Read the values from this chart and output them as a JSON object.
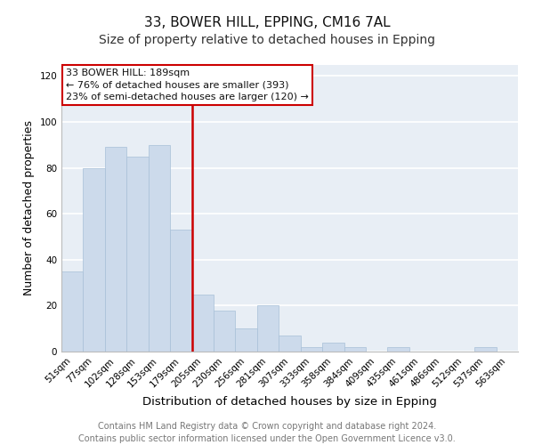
{
  "title1": "33, BOWER HILL, EPPING, CM16 7AL",
  "title2": "Size of property relative to detached houses in Epping",
  "xlabel": "Distribution of detached houses by size in Epping",
  "ylabel": "Number of detached properties",
  "categories": [
    "51sqm",
    "77sqm",
    "102sqm",
    "128sqm",
    "153sqm",
    "179sqm",
    "205sqm",
    "230sqm",
    "256sqm",
    "281sqm",
    "307sqm",
    "333sqm",
    "358sqm",
    "384sqm",
    "409sqm",
    "435sqm",
    "461sqm",
    "486sqm",
    "512sqm",
    "537sqm",
    "563sqm"
  ],
  "values": [
    35,
    80,
    89,
    85,
    90,
    53,
    25,
    18,
    10,
    20,
    7,
    2,
    4,
    2,
    0,
    2,
    0,
    0,
    0,
    2,
    0
  ],
  "bar_color": "#ccdaeb",
  "bar_edge_color": "#a8c0d8",
  "vline_x_index": 5.5,
  "vline_color": "#cc0000",
  "annotation_line1": "33 BOWER HILL: 189sqm",
  "annotation_line2": "← 76% of detached houses are smaller (393)",
  "annotation_line3": "23% of semi-detached houses are larger (120) →",
  "annotation_box_color": "#ffffff",
  "annotation_box_edge": "#cc0000",
  "ylim": [
    0,
    125
  ],
  "yticks": [
    0,
    20,
    40,
    60,
    80,
    100,
    120
  ],
  "bg_color": "#e8eef5",
  "footer_text": "Contains HM Land Registry data © Crown copyright and database right 2024.\nContains public sector information licensed under the Open Government Licence v3.0.",
  "title1_fontsize": 11,
  "title2_fontsize": 10,
  "xlabel_fontsize": 9.5,
  "ylabel_fontsize": 9,
  "tick_fontsize": 7.5,
  "footer_fontsize": 7,
  "annotation_fontsize": 8
}
